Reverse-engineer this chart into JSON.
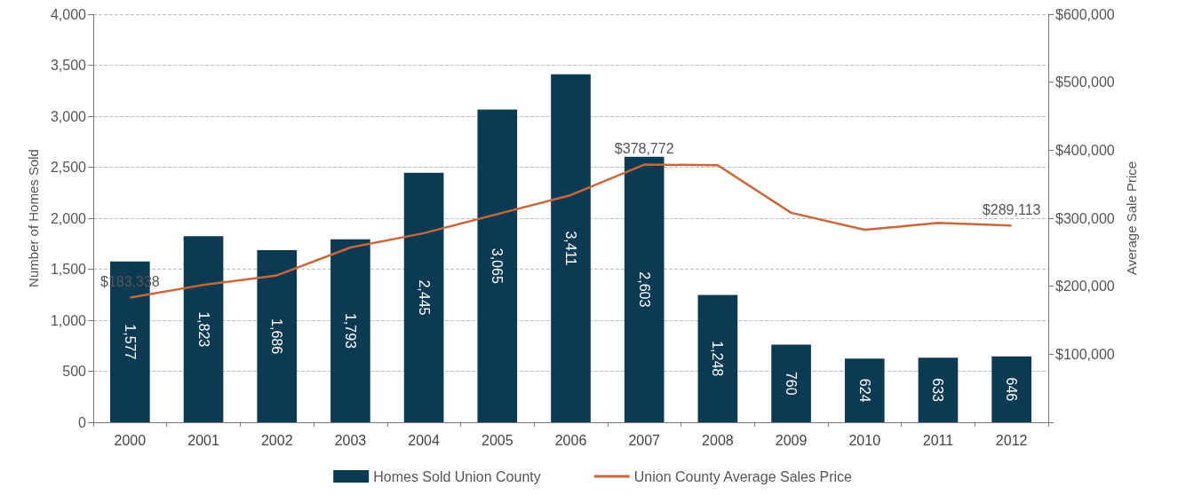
{
  "chart_data": {
    "type": "bar",
    "categories": [
      "2000",
      "2001",
      "2002",
      "2003",
      "2004",
      "2005",
      "2006",
      "2007",
      "2008",
      "2009",
      "2010",
      "2011",
      "2012"
    ],
    "ylabel": "Number of Homes Sold",
    "y2label": "Average Sale Price",
    "series": [
      {
        "name": "Homes Sold Union County",
        "color": "#0b3a52",
        "values": [
          1577,
          1823,
          1686,
          1793,
          2445,
          3065,
          3411,
          2603,
          1248,
          760,
          624,
          633,
          646
        ],
        "value_labels": [
          "1,577",
          "1,823",
          "1,686",
          "1,793",
          "2,445",
          "3,065",
          "3,411",
          "2,603",
          "1,248",
          "760",
          "624",
          "633",
          "646"
        ]
      },
      {
        "name": "Union County Average Sales Price",
        "type": "line",
        "axis": "y2",
        "color": "#c8673a",
        "marker": "none",
        "values": [
          183338,
          202000,
          216000,
          257000,
          278000,
          306000,
          334000,
          378772,
          378000,
          308000,
          283000,
          293000,
          289113
        ],
        "value_labels": [
          "$183,338",
          null,
          null,
          null,
          null,
          null,
          null,
          "$378,772",
          null,
          null,
          null,
          null,
          "$289,113"
        ]
      }
    ],
    "ylim": [
      0,
      4000
    ],
    "yticks": [
      0,
      500,
      {
        "value": 1000,
        "label": "1,000"
      },
      {
        "value": 1500,
        "label": "1,500"
      },
      {
        "value": 2000,
        "label": "2,000"
      },
      {
        "value": 2500,
        "label": "2,500"
      },
      {
        "value": 3000,
        "label": "3,000"
      },
      {
        "value": 3500,
        "label": "3,500"
      },
      {
        "value": 4000,
        "label": "4,000"
      }
    ],
    "y2lim": [
      0,
      600000
    ],
    "y2ticks": [
      {
        "value": 0,
        "label": null
      },
      {
        "value": 100000,
        "label": "$100,000"
      },
      {
        "value": 200000,
        "label": "$200,000"
      },
      {
        "value": 300000,
        "label": "$300,000"
      },
      {
        "value": 400000,
        "label": "$400,000"
      },
      {
        "value": 500000,
        "label": "$500,000"
      },
      {
        "value": 600000,
        "label": "$600,000"
      }
    ],
    "grid": "y",
    "legend": "bottom"
  }
}
